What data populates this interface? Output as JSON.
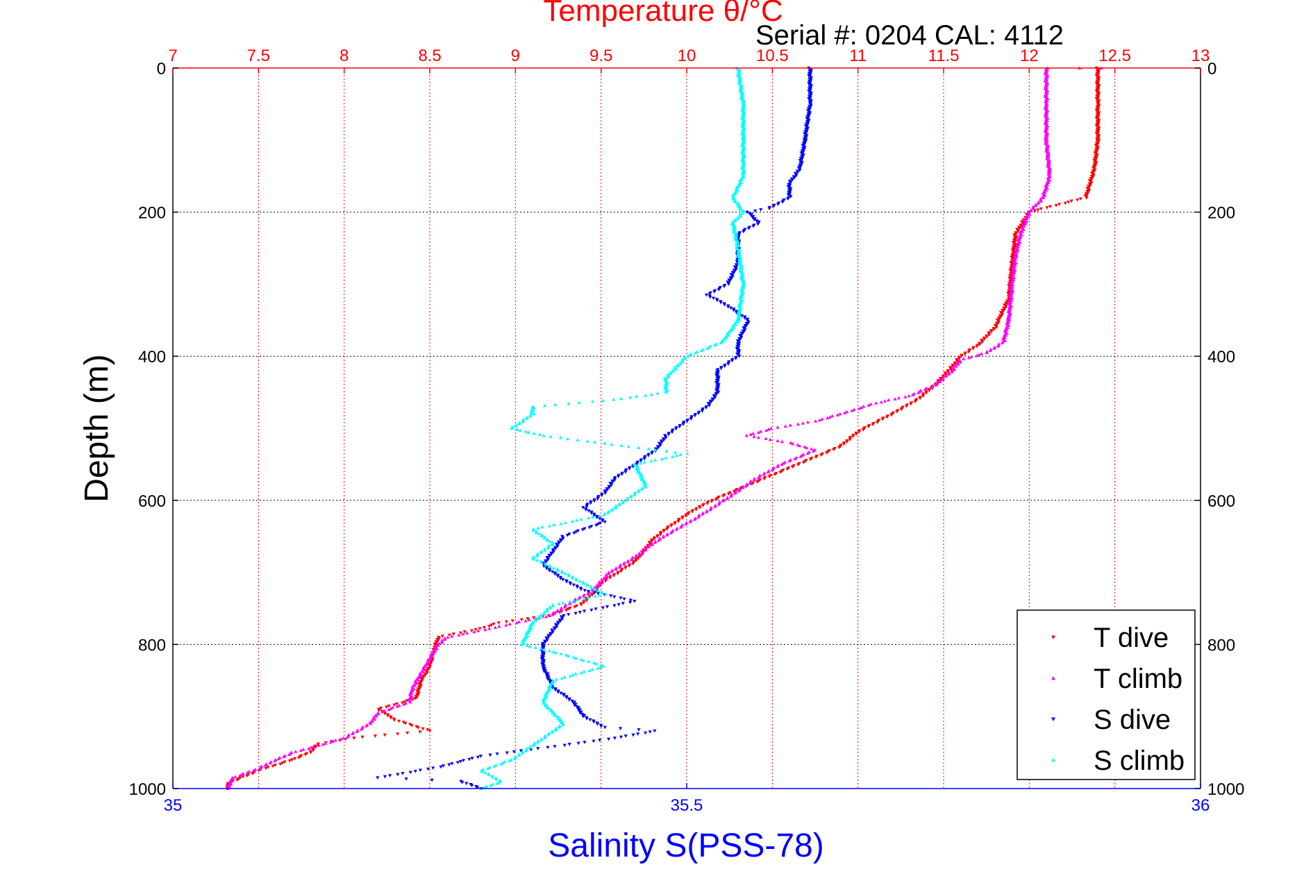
{
  "chart_data": {
    "type": "scatter",
    "title": "Temperature θ/°C",
    "subtitle": "Serial #: 0204  CAL: 4112",
    "ylabel": "Depth (m)",
    "xlabel_bottom": "Salinity S(PSS-78)",
    "xlabel_top": "Temperature θ/°C",
    "ylim": [
      0,
      1000
    ],
    "y_reversed": true,
    "temperature_axis": {
      "range": [
        7,
        13
      ],
      "ticks": [
        "7",
        "7.5",
        "8",
        "8.5",
        "9",
        "9.5",
        "10",
        "10.5",
        "11",
        "11.5",
        "12",
        "12.5",
        "13"
      ]
    },
    "salinity_axis": {
      "range": [
        35,
        36
      ],
      "ticks": [
        "35",
        "35.5",
        "36"
      ]
    },
    "depth_ticks": [
      "0",
      "200",
      "400",
      "600",
      "800",
      "1000"
    ],
    "grid": true,
    "legend_position": "bottom-right",
    "series": [
      {
        "name": "T dive",
        "axis": "temperature",
        "color": "#ff0000",
        "marker": "triangle-down",
        "points": [
          [
            12.4,
            0
          ],
          [
            12.4,
            50
          ],
          [
            12.4,
            100
          ],
          [
            12.38,
            140
          ],
          [
            12.33,
            180
          ],
          [
            12.0,
            200
          ],
          [
            11.92,
            230
          ],
          [
            11.9,
            270
          ],
          [
            11.88,
            320
          ],
          [
            11.8,
            360
          ],
          [
            11.7,
            385
          ],
          [
            11.6,
            400
          ],
          [
            11.53,
            420
          ],
          [
            11.45,
            440
          ],
          [
            11.35,
            460
          ],
          [
            11.2,
            480
          ],
          [
            11.0,
            505
          ],
          [
            10.9,
            525
          ],
          [
            10.75,
            540
          ],
          [
            10.6,
            555
          ],
          [
            10.45,
            570
          ],
          [
            10.3,
            585
          ],
          [
            10.15,
            600
          ],
          [
            10.07,
            610
          ],
          [
            10.0,
            620
          ],
          [
            9.88,
            640
          ],
          [
            9.8,
            655
          ],
          [
            9.75,
            670
          ],
          [
            9.7,
            685
          ],
          [
            9.6,
            700
          ],
          [
            9.5,
            715
          ],
          [
            9.45,
            730
          ],
          [
            9.38,
            745
          ],
          [
            9.2,
            760
          ],
          [
            8.9,
            770
          ],
          [
            8.8,
            778
          ],
          [
            8.55,
            790
          ],
          [
            8.52,
            810
          ],
          [
            8.5,
            830
          ],
          [
            8.45,
            850
          ],
          [
            8.42,
            875
          ],
          [
            8.2,
            890
          ],
          [
            8.3,
            905
          ],
          [
            8.5,
            920
          ],
          [
            8.05,
            930
          ],
          [
            7.85,
            938
          ],
          [
            7.8,
            950
          ],
          [
            7.7,
            960
          ],
          [
            7.5,
            975
          ],
          [
            7.4,
            985
          ],
          [
            7.32,
            993
          ],
          [
            7.32,
            1000
          ]
        ]
      },
      {
        "name": "T climb",
        "axis": "temperature",
        "color": "#ff00ff",
        "marker": "triangle-up",
        "points": [
          [
            12.3,
            0
          ],
          [
            12.42,
            0
          ],
          [
            12.1,
            0
          ],
          [
            12.1,
            50
          ],
          [
            12.1,
            100
          ],
          [
            12.12,
            150
          ],
          [
            12.08,
            180
          ],
          [
            12.0,
            200
          ],
          [
            11.95,
            230
          ],
          [
            11.92,
            260
          ],
          [
            11.9,
            300
          ],
          [
            11.88,
            350
          ],
          [
            11.85,
            380
          ],
          [
            11.75,
            395
          ],
          [
            11.6,
            405
          ],
          [
            11.55,
            420
          ],
          [
            11.45,
            440
          ],
          [
            11.3,
            455
          ],
          [
            11.1,
            465
          ],
          [
            10.9,
            480
          ],
          [
            10.75,
            490
          ],
          [
            10.5,
            500
          ],
          [
            10.35,
            510
          ],
          [
            10.6,
            520
          ],
          [
            10.75,
            530
          ],
          [
            10.55,
            550
          ],
          [
            10.4,
            570
          ],
          [
            10.28,
            590
          ],
          [
            10.15,
            610
          ],
          [
            10.05,
            625
          ],
          [
            9.9,
            645
          ],
          [
            9.8,
            660
          ],
          [
            9.72,
            675
          ],
          [
            9.55,
            700
          ],
          [
            9.45,
            725
          ],
          [
            9.3,
            745
          ],
          [
            9.2,
            760
          ],
          [
            9.0,
            770
          ],
          [
            8.85,
            778
          ],
          [
            8.6,
            790
          ],
          [
            8.55,
            800
          ],
          [
            8.5,
            820
          ],
          [
            8.45,
            840
          ],
          [
            8.4,
            860
          ],
          [
            8.38,
            880
          ],
          [
            8.2,
            895
          ],
          [
            8.15,
            910
          ],
          [
            8.0,
            930
          ],
          [
            7.85,
            940
          ],
          [
            7.7,
            950
          ],
          [
            7.6,
            960
          ],
          [
            7.5,
            972
          ],
          [
            7.35,
            985
          ],
          [
            7.32,
            1000
          ]
        ]
      },
      {
        "name": "S dive",
        "axis": "salinity",
        "color": "#0000ff",
        "marker": "triangle-down",
        "points": [
          [
            35.62,
            0
          ],
          [
            35.62,
            50
          ],
          [
            35.615,
            100
          ],
          [
            35.61,
            140
          ],
          [
            35.6,
            160
          ],
          [
            35.6,
            180
          ],
          [
            35.58,
            195
          ],
          [
            35.56,
            200
          ],
          [
            35.57,
            215
          ],
          [
            35.55,
            230
          ],
          [
            35.55,
            270
          ],
          [
            35.54,
            300
          ],
          [
            35.52,
            315
          ],
          [
            35.54,
            330
          ],
          [
            35.56,
            350
          ],
          [
            35.55,
            380
          ],
          [
            35.55,
            400
          ],
          [
            35.53,
            420
          ],
          [
            35.53,
            450
          ],
          [
            35.52,
            470
          ],
          [
            35.5,
            490
          ],
          [
            35.48,
            510
          ],
          [
            35.47,
            530
          ],
          [
            35.45,
            550
          ],
          [
            35.43,
            570
          ],
          [
            35.42,
            590
          ],
          [
            35.4,
            610
          ],
          [
            35.42,
            630
          ],
          [
            35.38,
            650
          ],
          [
            35.37,
            670
          ],
          [
            35.36,
            690
          ],
          [
            35.38,
            710
          ],
          [
            35.4,
            725
          ],
          [
            35.45,
            740
          ],
          [
            35.38,
            760
          ],
          [
            35.37,
            780
          ],
          [
            35.36,
            800
          ],
          [
            35.36,
            830
          ],
          [
            35.37,
            860
          ],
          [
            35.39,
            880
          ],
          [
            35.4,
            900
          ],
          [
            35.42,
            915
          ],
          [
            35.47,
            920
          ],
          [
            35.43,
            930
          ],
          [
            35.38,
            940
          ],
          [
            35.3,
            955
          ],
          [
            35.26,
            970
          ],
          [
            35.2,
            985
          ],
          [
            35.28,
            990
          ],
          [
            35.3,
            1000
          ]
        ]
      },
      {
        "name": "S climb",
        "axis": "salinity",
        "color": "#00ffff",
        "marker": "triangle-up",
        "points": [
          [
            35.55,
            0
          ],
          [
            35.555,
            50
          ],
          [
            35.555,
            100
          ],
          [
            35.555,
            150
          ],
          [
            35.545,
            180
          ],
          [
            35.555,
            200
          ],
          [
            35.545,
            215
          ],
          [
            35.55,
            250
          ],
          [
            35.555,
            300
          ],
          [
            35.55,
            350
          ],
          [
            35.535,
            380
          ],
          [
            35.5,
            400
          ],
          [
            35.48,
            430
          ],
          [
            35.48,
            450
          ],
          [
            35.43,
            460
          ],
          [
            35.35,
            470
          ],
          [
            35.35,
            480
          ],
          [
            35.33,
            500
          ],
          [
            35.36,
            510
          ],
          [
            35.47,
            530
          ],
          [
            35.5,
            535
          ],
          [
            35.45,
            550
          ],
          [
            35.46,
            580
          ],
          [
            35.44,
            600
          ],
          [
            35.42,
            620
          ],
          [
            35.35,
            640
          ],
          [
            35.37,
            660
          ],
          [
            35.35,
            680
          ],
          [
            35.38,
            700
          ],
          [
            35.4,
            715
          ],
          [
            35.42,
            730
          ],
          [
            35.37,
            745
          ],
          [
            35.35,
            770
          ],
          [
            35.34,
            800
          ],
          [
            35.37,
            810
          ],
          [
            35.42,
            830
          ],
          [
            35.37,
            850
          ],
          [
            35.36,
            880
          ],
          [
            35.38,
            910
          ],
          [
            35.35,
            940
          ],
          [
            35.33,
            960
          ],
          [
            35.3,
            975
          ],
          [
            35.32,
            990
          ],
          [
            35.3,
            1000
          ]
        ]
      }
    ]
  }
}
